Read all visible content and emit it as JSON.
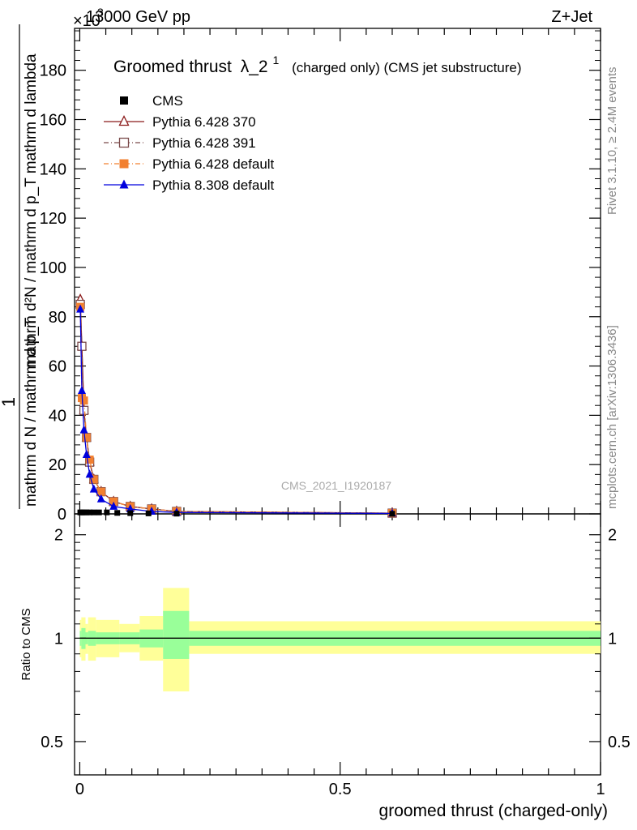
{
  "header": {
    "left": "13000 GeV pp",
    "right": "Z+Jet",
    "exponent_base": "×10",
    "exponent": "3"
  },
  "side_text": {
    "rivet": "Rivet 3.1.10, ≥ 2.4M events",
    "mcplots": "mcplots.cern.ch [arXiv:1306.3436]"
  },
  "watermark": "CMS_2021_I1920187",
  "title": {
    "main": "Groomed thrust",
    "lambda": "λ_2",
    "sup": "1",
    "qualifier": "(charged only) (CMS jet substructure)"
  },
  "ylabel": {
    "numerator": "1",
    "denominator": "mathrm d N / mathrm d p_T",
    "right": "mathrm d²N / mathrm d p_T mathrm d lambda"
  },
  "xlabel": "groomed thrust (charged-only)",
  "ratio_ylabel": "Ratio to CMS",
  "legend": [
    {
      "label": "CMS",
      "color": "#000000",
      "marker": "square-filled",
      "line": "none"
    },
    {
      "label": "Pythia 6.428 370",
      "color": "#8b1a1a",
      "marker": "triangle-open",
      "line": "solid"
    },
    {
      "label": "Pythia 6.428 391",
      "color": "#7a4a4a",
      "marker": "square-open",
      "line": "dashdot"
    },
    {
      "label": "Pythia 6.428 default",
      "color": "#f28030",
      "marker": "square-filled",
      "line": "dashdot"
    },
    {
      "label": "Pythia 8.308 default",
      "color": "#0000dd",
      "marker": "triangle-filled",
      "line": "solid"
    }
  ],
  "chart_data": {
    "type": "line",
    "xlim": [
      -0.01,
      1.0
    ],
    "ylim": [
      0,
      197
    ],
    "y_multiplier": 1000,
    "x_ticks": [
      0,
      0.5,
      1
    ],
    "x_tick_labels": [
      "0",
      "0.5",
      "1"
    ],
    "y_ticks": [
      0,
      20,
      40,
      60,
      80,
      100,
      120,
      140,
      160,
      180
    ],
    "y_tick_labels": [
      "0",
      "20",
      "40",
      "60",
      "80",
      "100",
      "120",
      "140",
      "160",
      "180"
    ],
    "series": [
      {
        "name": "CMS",
        "x": [
          0.001,
          0.004,
          0.008,
          0.013,
          0.019,
          0.027,
          0.037,
          0.052,
          0.072,
          0.097,
          0.132,
          0.186,
          0.6
        ],
        "y": [
          0.6,
          0.6,
          0.6,
          0.6,
          0.6,
          0.6,
          0.6,
          0.6,
          0.4,
          0.3,
          0.2,
          0.1,
          0.05
        ]
      },
      {
        "name": "Pythia 6.428 370",
        "x": [
          0.001,
          0.004,
          0.008,
          0.013,
          0.019,
          0.027,
          0.041,
          0.065,
          0.097,
          0.138,
          0.186,
          0.6
        ],
        "y": [
          87,
          68,
          42,
          31,
          21,
          14,
          9,
          5,
          3,
          2,
          1,
          0.3
        ]
      },
      {
        "name": "Pythia 6.428 391",
        "x": [
          0.001,
          0.004,
          0.008,
          0.013,
          0.019,
          0.027,
          0.041,
          0.065,
          0.097,
          0.138,
          0.186,
          0.6
        ],
        "y": [
          85,
          68,
          42,
          31,
          21,
          14,
          9,
          5,
          3,
          2,
          1,
          0.3
        ]
      },
      {
        "name": "Pythia 6.428 default",
        "x": [
          0.001,
          0.004,
          0.008,
          0.013,
          0.019,
          0.027,
          0.041,
          0.065,
          0.097,
          0.138,
          0.186,
          0.6
        ],
        "y": [
          84,
          47,
          46,
          31,
          22,
          14,
          9,
          5,
          3,
          2,
          1,
          0.3
        ]
      },
      {
        "name": "Pythia 8.308 default",
        "x": [
          0.001,
          0.004,
          0.008,
          0.013,
          0.019,
          0.027,
          0.041,
          0.065,
          0.097,
          0.138,
          0.186,
          0.6
        ],
        "y": [
          83,
          50,
          34,
          24,
          16,
          10,
          6,
          3,
          2,
          1,
          0.6,
          0.2
        ]
      }
    ],
    "ratio": {
      "ylabel": "Ratio to CMS",
      "ylim": [
        0.4,
        2.3
      ],
      "log_scale": true,
      "y_ticks": [
        0.5,
        1,
        2
      ],
      "y_tick_labels": [
        "0.5",
        "1",
        "2"
      ],
      "bands": [
        {
          "x0": 0.0,
          "x1": 0.003,
          "stat": [
            0.95,
            1.05
          ],
          "total": [
            0.88,
            1.13
          ]
        },
        {
          "x0": 0.003,
          "x1": 0.011,
          "stat": [
            0.93,
            1.07
          ],
          "total": [
            0.86,
            1.15
          ]
        },
        {
          "x0": 0.011,
          "x1": 0.016,
          "stat": [
            0.96,
            1.04
          ],
          "total": [
            0.9,
            1.1
          ]
        },
        {
          "x0": 0.016,
          "x1": 0.031,
          "stat": [
            0.95,
            1.05
          ],
          "total": [
            0.86,
            1.15
          ]
        },
        {
          "x0": 0.031,
          "x1": 0.076,
          "stat": [
            0.96,
            1.04
          ],
          "total": [
            0.88,
            1.13
          ]
        },
        {
          "x0": 0.076,
          "x1": 0.115,
          "stat": [
            0.96,
            1.04
          ],
          "total": [
            0.91,
            1.1
          ]
        },
        {
          "x0": 0.115,
          "x1": 0.16,
          "stat": [
            0.94,
            1.06
          ],
          "total": [
            0.86,
            1.16
          ]
        },
        {
          "x0": 0.16,
          "x1": 0.21,
          "stat": [
            0.87,
            1.2
          ],
          "total": [
            0.7,
            1.4
          ]
        },
        {
          "x0": 0.21,
          "x1": 1.0,
          "stat": [
            0.95,
            1.05
          ],
          "total": [
            0.9,
            1.12
          ]
        }
      ]
    }
  }
}
